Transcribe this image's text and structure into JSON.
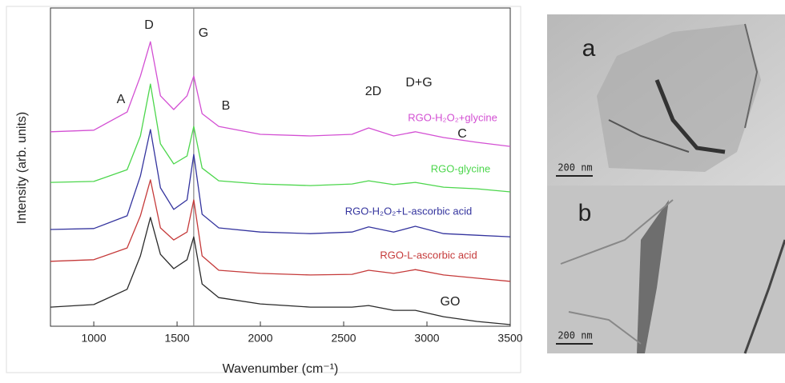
{
  "chart_data": {
    "type": "line",
    "xlabel": "Wavenumber (cm⁻¹)",
    "ylabel": "Intensity (arb. units)",
    "x": [
      740,
      1000,
      1200,
      1280,
      1340,
      1400,
      1480,
      1560,
      1600,
      1650,
      1750,
      2000,
      2300,
      2550,
      2650,
      2800,
      2930,
      3100,
      3300,
      3500
    ],
    "xlim": [
      740,
      3500
    ],
    "xticks": [
      1000,
      1500,
      2000,
      2500,
      3000,
      3500
    ],
    "ylim": [
      0,
      100
    ],
    "reference_x": 1600,
    "series": [
      {
        "name": "RGO-H₂O₂+glycine",
        "color": "#d34fd3",
        "values": [
          61.1,
          61.6,
          67.3,
          78.6,
          89.4,
          72.4,
          68.1,
          72.4,
          78.6,
          66.8,
          62.8,
          60.3,
          59.8,
          60.3,
          62.3,
          59.8,
          61.1,
          59.3,
          57.8,
          56.5
        ]
      },
      {
        "name": "RGO-glycine",
        "color": "#4cd64c",
        "values": [
          45.2,
          45.5,
          49.2,
          59.8,
          76.1,
          57.3,
          51.0,
          53.5,
          62.8,
          49.7,
          45.7,
          44.7,
          44.2,
          44.7,
          45.7,
          44.5,
          45.2,
          43.7,
          43.2,
          42.2
        ]
      },
      {
        "name": "RGO-H₂O₂+L-ascorbic acid",
        "color": "#34349e",
        "values": [
          30.4,
          30.7,
          34.7,
          47.2,
          61.8,
          43.5,
          36.7,
          39.7,
          54.0,
          35.2,
          30.9,
          29.6,
          29.1,
          29.6,
          31.2,
          29.6,
          31.4,
          29.1,
          28.6,
          28.1
        ]
      },
      {
        "name": "RGO-L-ascorbic acid",
        "color": "#c53a3a",
        "values": [
          20.4,
          20.9,
          24.6,
          34.7,
          46.0,
          30.9,
          27.1,
          29.6,
          39.7,
          22.1,
          17.6,
          16.6,
          16.1,
          16.3,
          17.6,
          16.6,
          17.8,
          16.1,
          15.1,
          14.1
        ]
      },
      {
        "name": "GO",
        "color": "#2a2a2a",
        "values": [
          6.0,
          6.8,
          11.6,
          22.1,
          34.2,
          22.6,
          18.1,
          20.9,
          28.1,
          13.3,
          9.0,
          7.0,
          6.0,
          6.0,
          6.5,
          5.0,
          5.0,
          3.0,
          1.5,
          0.5
        ]
      }
    ],
    "annotations": [
      "A",
      "D",
      "G",
      "B",
      "2D",
      "D+G",
      "C"
    ]
  },
  "images": [
    {
      "label": "a",
      "scale_bar": "200 nm"
    },
    {
      "label": "b",
      "scale_bar": "200 nm"
    }
  ]
}
